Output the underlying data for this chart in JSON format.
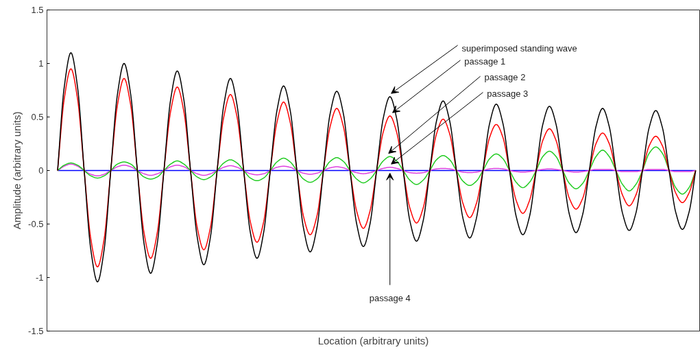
{
  "chart_data": {
    "type": "line",
    "xlabel": "Location (arbitrary units)",
    "ylabel": "Amplitude (arbitrary units)",
    "categories": [
      null,
      null,
      null,
      null,
      null,
      null,
      null,
      null,
      null,
      null,
      null,
      null,
      null,
      null,
      null,
      null,
      null,
      null,
      null,
      null,
      null,
      null,
      null,
      null,
      null,
      null,
      null,
      null,
      null,
      null,
      null,
      null,
      null,
      null,
      null,
      null,
      null,
      null,
      null,
      null,
      null,
      null,
      null,
      null,
      null,
      null,
      null,
      null,
      null,
      null,
      null,
      null,
      null,
      null,
      null,
      null,
      null,
      null,
      null,
      null,
      null,
      null,
      null,
      null,
      null,
      null,
      null,
      null,
      null,
      null,
      null,
      null,
      null,
      null,
      null,
      null,
      null,
      null,
      null,
      null,
      null,
      null,
      null,
      null,
      null,
      null,
      null,
      null,
      null,
      null,
      null,
      null,
      null,
      null,
      null,
      null,
      null
    ],
    "series": [
      {
        "color": "#0000ff",
        "values": [
          0,
          0,
          0,
          0,
          0,
          0,
          0,
          0,
          0,
          0,
          0,
          0,
          0,
          0,
          0,
          0,
          0,
          0,
          0,
          0,
          0,
          0,
          0,
          0,
          0,
          0,
          0,
          0,
          0,
          0,
          0,
          0,
          0,
          0,
          0,
          0,
          0,
          0,
          0,
          0,
          0,
          0,
          0,
          0,
          0,
          0,
          0,
          0,
          0,
          0,
          0,
          0,
          0,
          0,
          0,
          0,
          0,
          0,
          0,
          0,
          0,
          0,
          0,
          0,
          0,
          0,
          0,
          0,
          0,
          0,
          0,
          0,
          0,
          0,
          0,
          0,
          0,
          0,
          0,
          0,
          0,
          0,
          0,
          0,
          0,
          0,
          0,
          0,
          0,
          0,
          0,
          0,
          0,
          0,
          0,
          0,
          0
        ]
      },
      {
        "color": "#e040e0",
        "values": [
          0,
          0.04,
          0.06,
          0.04,
          0,
          -0.035,
          -0.05,
          -0.035,
          0,
          0.035,
          0.05,
          0.035,
          0,
          -0.03,
          -0.045,
          -0.03,
          0,
          0.035,
          0.05,
          0.035,
          0,
          -0.03,
          -0.045,
          -0.03,
          0,
          0.03,
          0.045,
          0.03,
          0,
          -0.03,
          -0.04,
          -0.03,
          0,
          0.03,
          0.04,
          0.03,
          0,
          -0.025,
          -0.035,
          -0.025,
          0,
          0.025,
          0.035,
          0.025,
          0,
          -0.02,
          -0.03,
          -0.02,
          0,
          0.02,
          0.03,
          0.02,
          0,
          -0.02,
          -0.025,
          -0.02,
          0,
          0.015,
          0.02,
          0.015,
          0,
          -0.015,
          -0.02,
          -0.015,
          0,
          0.015,
          0.02,
          0.015,
          0,
          -0.01,
          -0.015,
          -0.01,
          0,
          0.01,
          0.015,
          0.01,
          0,
          -0.01,
          -0.015,
          -0.01,
          0,
          0.01,
          0.01,
          0.01,
          0,
          -0.01,
          -0.01,
          -0.01,
          0,
          0.01,
          0.01,
          0.01,
          0,
          -0.01,
          -0.01,
          -0.01,
          0
        ]
      },
      {
        "color": "#22cc22",
        "values": [
          0,
          0.05,
          0.07,
          0.05,
          0,
          -0.05,
          -0.07,
          -0.05,
          0,
          0.06,
          0.08,
          0.06,
          0,
          -0.06,
          -0.08,
          -0.06,
          0,
          0.06,
          0.09,
          0.06,
          0,
          -0.06,
          -0.085,
          -0.06,
          0,
          0.07,
          0.1,
          0.07,
          0,
          -0.07,
          -0.095,
          -0.07,
          0,
          0.08,
          0.115,
          0.08,
          0,
          -0.08,
          -0.11,
          -0.08,
          0,
          0.085,
          0.12,
          0.085,
          0,
          -0.08,
          -0.115,
          -0.08,
          0,
          0.09,
          0.13,
          0.09,
          0,
          -0.09,
          -0.13,
          -0.09,
          0,
          0.1,
          0.14,
          0.1,
          0,
          -0.1,
          -0.14,
          -0.1,
          0,
          0.11,
          0.155,
          0.11,
          0,
          -0.11,
          -0.16,
          -0.11,
          0,
          0.13,
          0.18,
          0.13,
          0,
          -0.12,
          -0.17,
          -0.12,
          0,
          0.13,
          0.19,
          0.13,
          0,
          -0.13,
          -0.19,
          -0.13,
          0,
          0.16,
          0.22,
          0.16,
          0,
          -0.16,
          -0.22,
          -0.16,
          0
        ]
      },
      {
        "color": "#ff0000",
        "values": [
          0,
          0.67,
          0.95,
          0.67,
          0,
          -0.64,
          -0.9,
          -0.64,
          0,
          0.61,
          0.86,
          0.61,
          0,
          -0.58,
          -0.82,
          -0.58,
          0,
          0.55,
          0.78,
          0.55,
          0,
          -0.53,
          -0.74,
          -0.53,
          0,
          0.5,
          0.71,
          0.5,
          0,
          -0.48,
          -0.67,
          -0.48,
          0,
          0.45,
          0.64,
          0.45,
          0,
          -0.43,
          -0.6,
          -0.43,
          0,
          0.41,
          0.58,
          0.41,
          0,
          -0.38,
          -0.54,
          -0.38,
          0,
          0.36,
          0.51,
          0.36,
          0,
          -0.35,
          -0.49,
          -0.35,
          0,
          0.34,
          0.48,
          0.34,
          0,
          -0.31,
          -0.44,
          -0.31,
          0,
          0.31,
          0.43,
          0.31,
          0,
          -0.28,
          -0.4,
          -0.28,
          0,
          0.28,
          0.39,
          0.28,
          0,
          -0.26,
          -0.36,
          -0.26,
          0,
          0.25,
          0.35,
          0.25,
          0,
          -0.23,
          -0.33,
          -0.23,
          0,
          0.23,
          0.32,
          0.23,
          0,
          -0.21,
          -0.3,
          -0.21,
          0
        ]
      },
      {
        "color": "#000000",
        "values": [
          0,
          0.78,
          1.1,
          0.78,
          0,
          -0.74,
          -1.04,
          -0.74,
          0,
          0.71,
          1.0,
          0.71,
          0,
          -0.68,
          -0.96,
          -0.68,
          0,
          0.66,
          0.93,
          0.66,
          0,
          -0.62,
          -0.88,
          -0.62,
          0,
          0.61,
          0.86,
          0.61,
          0,
          -0.58,
          -0.82,
          -0.58,
          0,
          0.56,
          0.79,
          0.56,
          0,
          -0.54,
          -0.76,
          -0.54,
          0,
          0.53,
          0.74,
          0.53,
          0,
          -0.5,
          -0.71,
          -0.5,
          0,
          0.49,
          0.69,
          0.49,
          0,
          -0.47,
          -0.66,
          -0.47,
          0,
          0.46,
          0.65,
          0.46,
          0,
          -0.45,
          -0.63,
          -0.45,
          0,
          0.44,
          0.62,
          0.44,
          0,
          -0.43,
          -0.6,
          -0.43,
          0,
          0.43,
          0.6,
          0.43,
          0,
          -0.41,
          -0.58,
          -0.41,
          0,
          0.41,
          0.58,
          0.41,
          0,
          -0.4,
          -0.56,
          -0.4,
          0,
          0.4,
          0.56,
          0.4,
          0,
          -0.39,
          -0.55,
          -0.39,
          0
        ]
      }
    ],
    "ylim": [
      -1.5,
      1.5
    ],
    "yticks": [
      -1.5,
      -1,
      -0.5,
      0,
      0.5,
      1,
      1.5
    ],
    "tick_labels": "y",
    "grid": false,
    "marker": "none",
    "line_style": "solid",
    "annotations": [
      "superimposed standing wave",
      "passage 1",
      "passage 2",
      "passage 3",
      "passage 4"
    ]
  }
}
